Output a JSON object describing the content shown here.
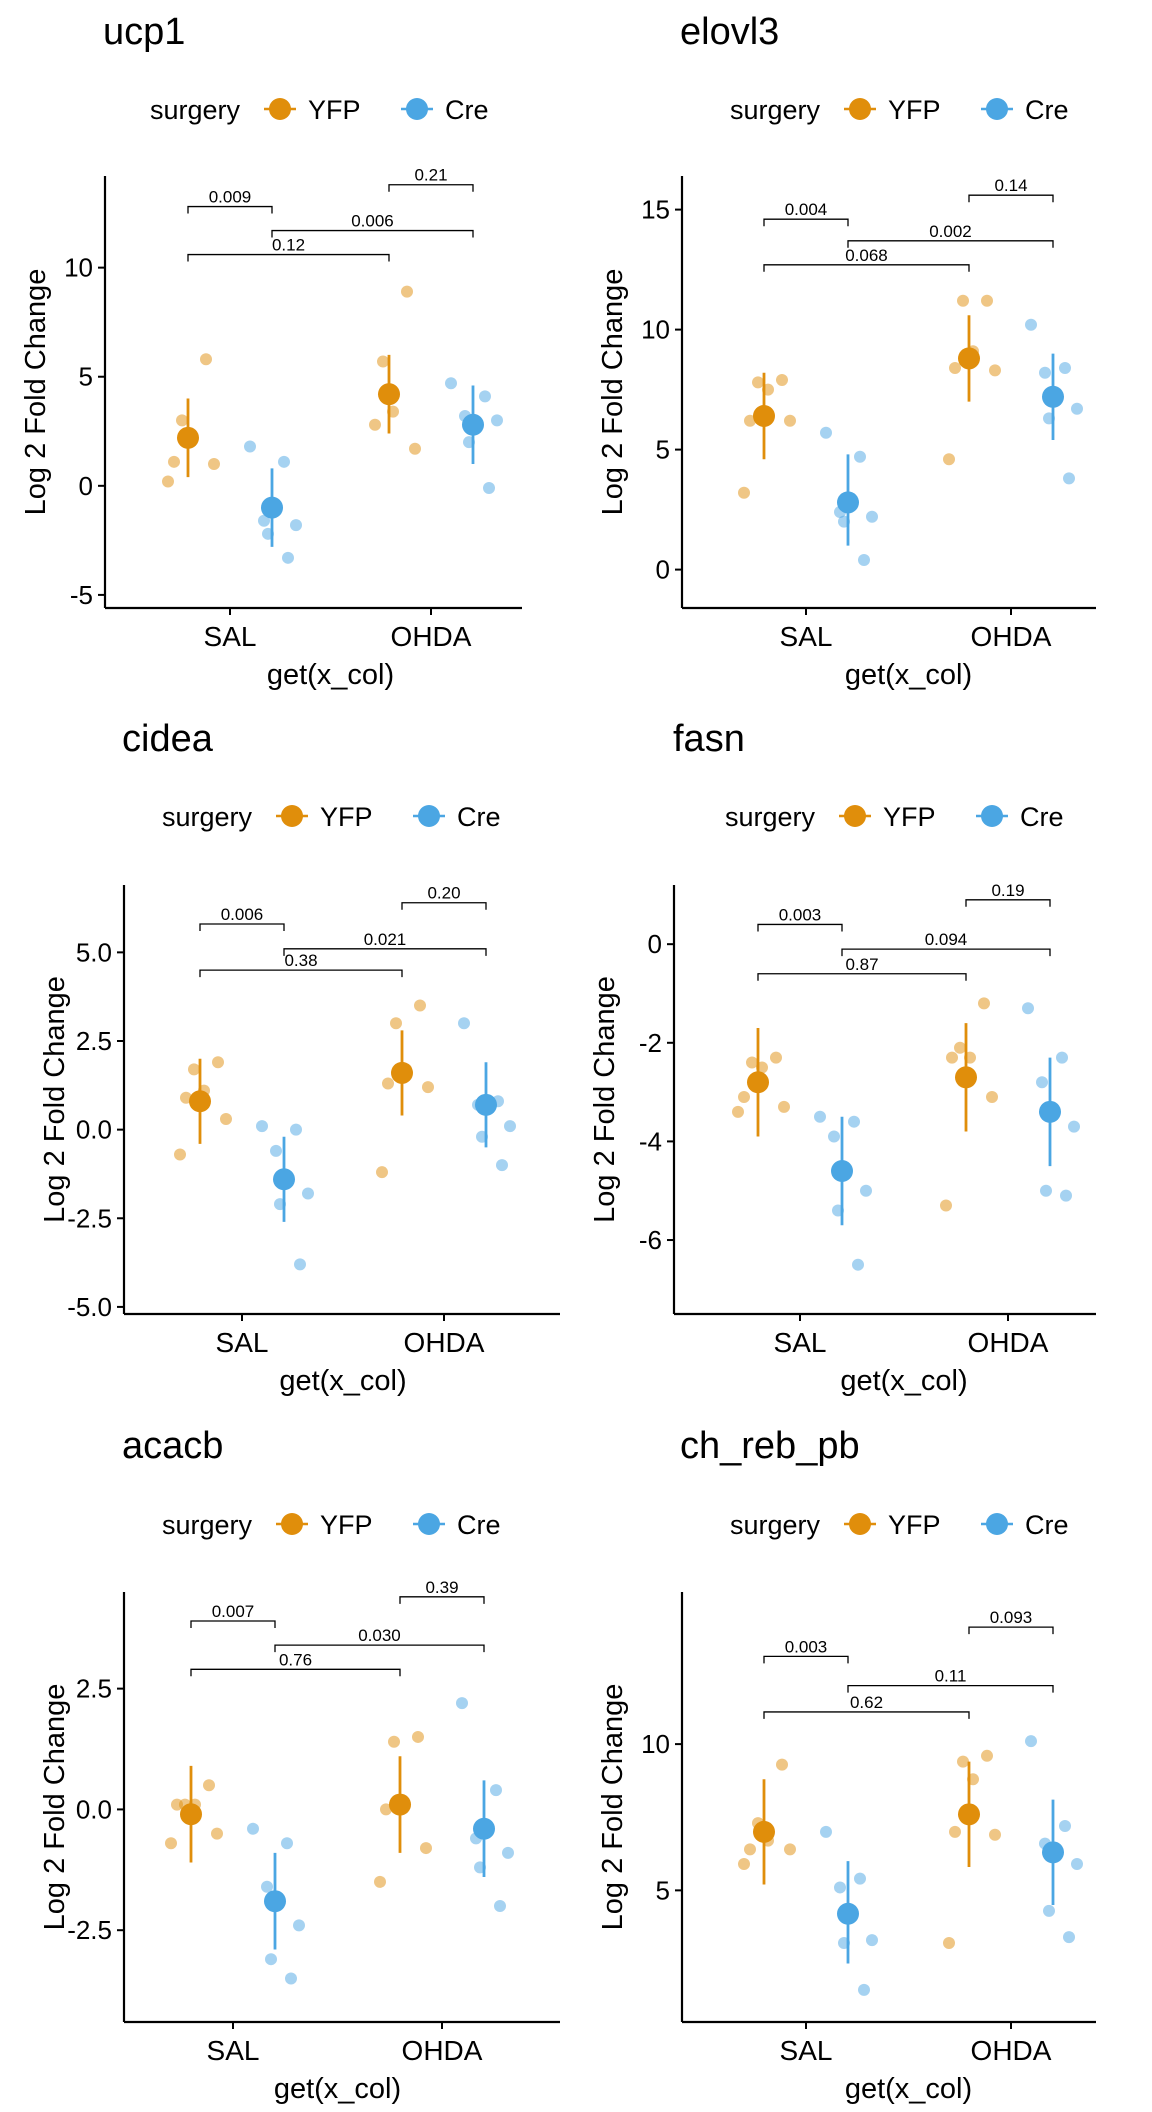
{
  "legend": {
    "title": "surgery",
    "entries": [
      {
        "name": "YFP",
        "color": "#E08E0B"
      },
      {
        "name": "Cre",
        "color": "#4BA6E3"
      }
    ]
  },
  "chart_data": [
    {
      "type": "scatter",
      "title": "ucp1",
      "xlabel": "get(x_col)",
      "ylabel": "Log 2 Fold Change",
      "categories": [
        "SAL",
        "OHDA"
      ],
      "ylim": [
        -5.6,
        14.2
      ],
      "yticks": [
        -5,
        0,
        5,
        10
      ],
      "ytick_labels": [
        "-5",
        "0",
        "5",
        "10"
      ],
      "series": [
        {
          "name": "YFP",
          "mean": [
            2.2,
            4.2
          ],
          "err": [
            [
              0.4,
              4.0
            ],
            [
              2.4,
              6.0
            ]
          ],
          "points": [
            [
              5.8,
              3.0,
              2.1,
              1.1,
              1.0,
              0.2
            ],
            [
              8.9,
              5.7,
              3.4,
              2.8,
              1.7
            ]
          ]
        },
        {
          "name": "Cre",
          "mean": [
            -1.0,
            2.8
          ],
          "err": [
            [
              -2.8,
              0.8
            ],
            [
              1.0,
              4.6
            ]
          ],
          "points": [
            [
              1.8,
              1.1,
              -1.6,
              -1.8,
              -2.2,
              -3.3
            ],
            [
              4.7,
              4.1,
              3.2,
              3.0,
              2.0,
              -0.1
            ]
          ]
        }
      ],
      "brackets": [
        {
          "from": "SAL YFP",
          "to": "SAL Cre",
          "y": 12.8,
          "label": "0.009"
        },
        {
          "from": "OHDA YFP",
          "to": "OHDA Cre",
          "y": 13.8,
          "label": "0.21"
        },
        {
          "from": "SAL Cre",
          "to": "OHDA Cre",
          "y": 11.7,
          "label": "0.006"
        },
        {
          "from": "SAL YFP",
          "to": "OHDA YFP",
          "y": 10.6,
          "label": "0.12"
        }
      ]
    },
    {
      "type": "scatter",
      "title": "elovl3",
      "xlabel": "get(x_col)",
      "ylabel": "Log 2 Fold Change",
      "categories": [
        "SAL",
        "OHDA"
      ],
      "ylim": [
        -1.6,
        16.4
      ],
      "yticks": [
        0,
        5,
        10,
        15
      ],
      "ytick_labels": [
        "0",
        "5",
        "10",
        "15"
      ],
      "series": [
        {
          "name": "YFP",
          "mean": [
            6.4,
            8.8
          ],
          "err": [
            [
              4.6,
              8.2
            ],
            [
              7.0,
              10.6
            ]
          ],
          "points": [
            [
              7.9,
              7.8,
              7.5,
              6.2,
              6.2,
              3.2
            ],
            [
              11.2,
              11.2,
              9.1,
              8.4,
              8.3,
              4.6
            ]
          ]
        },
        {
          "name": "Cre",
          "mean": [
            2.8,
            7.2
          ],
          "err": [
            [
              1.0,
              4.8
            ],
            [
              5.4,
              9.0
            ]
          ],
          "points": [
            [
              5.7,
              4.7,
              2.4,
              2.2,
              2.0,
              0.4
            ],
            [
              10.2,
              8.4,
              8.2,
              6.7,
              6.3,
              3.8
            ]
          ]
        }
      ],
      "brackets": [
        {
          "from": "SAL YFP",
          "to": "SAL Cre",
          "y": 14.6,
          "label": "0.004"
        },
        {
          "from": "OHDA YFP",
          "to": "OHDA Cre",
          "y": 15.6,
          "label": "0.14"
        },
        {
          "from": "SAL Cre",
          "to": "OHDA Cre",
          "y": 13.7,
          "label": "0.002"
        },
        {
          "from": "SAL YFP",
          "to": "OHDA YFP",
          "y": 12.7,
          "label": "0.068"
        }
      ]
    },
    {
      "type": "scatter",
      "title": "cidea",
      "xlabel": "get(x_col)",
      "ylabel": "Log 2 Fold Change",
      "categories": [
        "SAL",
        "OHDA"
      ],
      "ylim": [
        -5.2,
        6.9
      ],
      "yticks": [
        -5,
        -2.5,
        0,
        2.5,
        5
      ],
      "ytick_labels": [
        "-5.0",
        "-2.5",
        "0.0",
        "2.5",
        "5.0"
      ],
      "series": [
        {
          "name": "YFP",
          "mean": [
            0.8,
            1.6
          ],
          "err": [
            [
              -0.4,
              2.0
            ],
            [
              0.4,
              2.8
            ]
          ],
          "points": [
            [
              1.9,
              1.7,
              1.1,
              0.9,
              0.3,
              -0.7
            ],
            [
              3.5,
              3.0,
              1.7,
              1.3,
              1.2,
              -1.2
            ]
          ]
        },
        {
          "name": "Cre",
          "mean": [
            -1.4,
            0.7
          ],
          "err": [
            [
              -2.6,
              -0.2
            ],
            [
              -0.5,
              1.9
            ]
          ],
          "points": [
            [
              0.1,
              0.0,
              -0.6,
              -1.8,
              -2.1,
              -3.8
            ],
            [
              3.0,
              0.8,
              0.7,
              0.1,
              -0.2,
              -1.0
            ]
          ]
        }
      ],
      "brackets": [
        {
          "from": "SAL YFP",
          "to": "SAL Cre",
          "y": 5.8,
          "label": "0.006"
        },
        {
          "from": "OHDA YFP",
          "to": "OHDA Cre",
          "y": 6.4,
          "label": "0.20"
        },
        {
          "from": "SAL Cre",
          "to": "OHDA Cre",
          "y": 5.1,
          "label": "0.021"
        },
        {
          "from": "SAL YFP",
          "to": "OHDA YFP",
          "y": 4.5,
          "label": "0.38"
        }
      ]
    },
    {
      "type": "scatter",
      "title": "fasn",
      "xlabel": "get(x_col)",
      "ylabel": "Log 2 Fold Change",
      "categories": [
        "SAL",
        "OHDA"
      ],
      "ylim": [
        -7.5,
        1.2
      ],
      "yticks": [
        -6,
        -4,
        -2,
        0
      ],
      "ytick_labels": [
        "-6",
        "-4",
        "-2",
        "0"
      ],
      "series": [
        {
          "name": "YFP",
          "mean": [
            -2.8,
            -2.7
          ],
          "err": [
            [
              -3.9,
              -1.7
            ],
            [
              -3.8,
              -1.6
            ]
          ],
          "points": [
            [
              -2.3,
              -2.4,
              -2.5,
              -3.1,
              -3.3,
              -3.4
            ],
            [
              -1.2,
              -2.1,
              -2.3,
              -2.3,
              -3.1,
              -5.3
            ]
          ]
        },
        {
          "name": "Cre",
          "mean": [
            -4.6,
            -3.4
          ],
          "err": [
            [
              -5.7,
              -3.5
            ],
            [
              -4.5,
              -2.3
            ]
          ],
          "points": [
            [
              -3.5,
              -3.6,
              -3.9,
              -5.0,
              -5.4,
              -6.5
            ],
            [
              -1.3,
              -2.3,
              -2.8,
              -3.7,
              -5.0,
              -5.1
            ]
          ]
        }
      ],
      "brackets": [
        {
          "from": "SAL YFP",
          "to": "SAL Cre",
          "y": 0.4,
          "label": "0.003"
        },
        {
          "from": "OHDA YFP",
          "to": "OHDA Cre",
          "y": 0.9,
          "label": "0.19"
        },
        {
          "from": "SAL Cre",
          "to": "OHDA Cre",
          "y": -0.1,
          "label": "0.094"
        },
        {
          "from": "SAL YFP",
          "to": "OHDA YFP",
          "y": -0.6,
          "label": "0.87"
        }
      ]
    },
    {
      "type": "scatter",
      "title": "acacb",
      "xlabel": "get(x_col)",
      "ylabel": "Log 2 Fold Change",
      "categories": [
        "SAL",
        "OHDA"
      ],
      "ylim": [
        -4.4,
        4.5
      ],
      "yticks": [
        -2.5,
        0,
        2.5
      ],
      "ytick_labels": [
        "-2.5",
        "0.0",
        "2.5"
      ],
      "series": [
        {
          "name": "YFP",
          "mean": [
            -0.1,
            0.1
          ],
          "err": [
            [
              -1.1,
              0.9
            ],
            [
              -0.9,
              1.1
            ]
          ],
          "points": [
            [
              0.5,
              0.1,
              0.1,
              0.1,
              -0.5,
              -0.7
            ],
            [
              1.5,
              1.4,
              0.1,
              0.0,
              -0.8,
              -1.5
            ]
          ]
        },
        {
          "name": "Cre",
          "mean": [
            -1.9,
            -0.4
          ],
          "err": [
            [
              -2.9,
              -0.9
            ],
            [
              -1.4,
              0.6
            ]
          ],
          "points": [
            [
              -0.4,
              -0.7,
              -1.6,
              -2.4,
              -3.1,
              -3.5
            ],
            [
              2.2,
              0.4,
              -0.6,
              -0.9,
              -1.2,
              -2.0
            ]
          ]
        }
      ],
      "brackets": [
        {
          "from": "SAL YFP",
          "to": "SAL Cre",
          "y": 3.9,
          "label": "0.007"
        },
        {
          "from": "OHDA YFP",
          "to": "OHDA Cre",
          "y": 4.4,
          "label": "0.39"
        },
        {
          "from": "SAL Cre",
          "to": "OHDA Cre",
          "y": 3.4,
          "label": "0.030"
        },
        {
          "from": "SAL YFP",
          "to": "OHDA YFP",
          "y": 2.9,
          "label": "0.76"
        }
      ]
    },
    {
      "type": "scatter",
      "title": "ch_reb_pb",
      "xlabel": "get(x_col)",
      "ylabel": "Log 2 Fold Change",
      "categories": [
        "SAL",
        "OHDA"
      ],
      "ylim": [
        0.5,
        15.2
      ],
      "yticks": [
        5,
        10
      ],
      "ytick_labels": [
        "5",
        "10"
      ],
      "series": [
        {
          "name": "YFP",
          "mean": [
            7.0,
            7.6
          ],
          "err": [
            [
              5.2,
              8.8
            ],
            [
              5.8,
              9.4
            ]
          ],
          "points": [
            [
              9.3,
              7.3,
              6.7,
              6.4,
              6.4,
              5.9
            ],
            [
              9.6,
              9.4,
              8.8,
              7.0,
              6.9,
              3.2
            ]
          ]
        },
        {
          "name": "Cre",
          "mean": [
            4.2,
            6.3
          ],
          "err": [
            [
              2.5,
              6.0
            ],
            [
              4.5,
              8.1
            ]
          ],
          "points": [
            [
              7.0,
              5.4,
              5.1,
              3.3,
              3.2,
              1.6
            ],
            [
              10.1,
              7.2,
              6.6,
              5.9,
              4.3,
              3.4
            ]
          ]
        }
      ],
      "brackets": [
        {
          "from": "SAL YFP",
          "to": "SAL Cre",
          "y": 13.0,
          "label": "0.003"
        },
        {
          "from": "OHDA YFP",
          "to": "OHDA Cre",
          "y": 14.0,
          "label": "0.093"
        },
        {
          "from": "SAL Cre",
          "to": "OHDA Cre",
          "y": 12.0,
          "label": "0.11"
        },
        {
          "from": "SAL YFP",
          "to": "OHDA YFP",
          "y": 11.1,
          "label": "0.62"
        }
      ]
    }
  ]
}
